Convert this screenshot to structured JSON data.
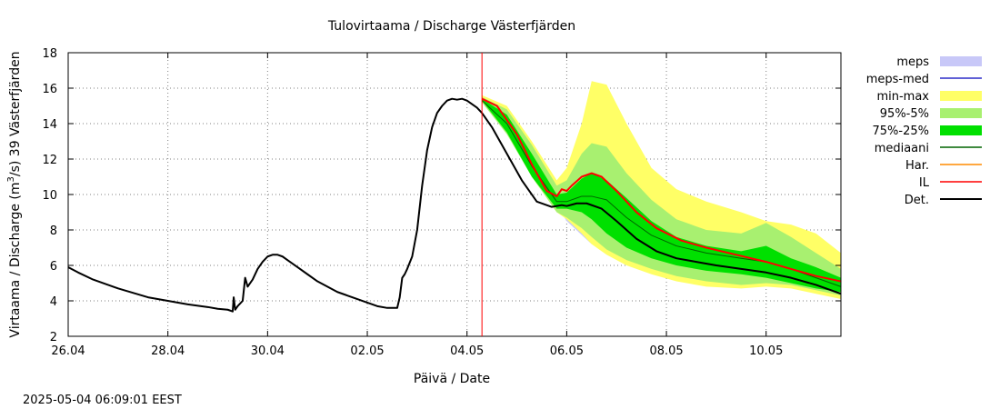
{
  "chart_data": {
    "type": "line",
    "title": "Tulovirtaama / Discharge  Västerfjärden",
    "xlabel": "Päivä / Date",
    "ylabel_parts": [
      "Virtaama / Discharge (m",
      "3",
      "/s)  39 Västerfjärden"
    ],
    "timestamp": "2025-05-04 06:09:01 EEST",
    "xlim": [
      0,
      15.5
    ],
    "ylim": [
      2,
      18
    ],
    "x_unit": "days since 26.04",
    "x_ticks": [
      {
        "x": 0,
        "label": "26.04"
      },
      {
        "x": 2,
        "label": "28.04"
      },
      {
        "x": 4,
        "label": "30.04"
      },
      {
        "x": 6,
        "label": "02.05"
      },
      {
        "x": 8,
        "label": "04.05"
      },
      {
        "x": 10,
        "label": "06.05"
      },
      {
        "x": 12,
        "label": "08.05"
      },
      {
        "x": 14,
        "label": "10.05"
      }
    ],
    "y_ticks": [
      2,
      4,
      6,
      8,
      10,
      12,
      14,
      16,
      18
    ],
    "grid": true,
    "forecast_start": 8.3,
    "legend_position": "right",
    "legend": [
      {
        "name": "meps",
        "kind": "box",
        "color": "#c8c8f8"
      },
      {
        "name": "meps-med",
        "kind": "line",
        "color": "#2b2bc8"
      },
      {
        "name": "min-max",
        "kind": "box",
        "color": "#ffff66"
      },
      {
        "name": "95%-5%",
        "kind": "box",
        "color": "#a8f070"
      },
      {
        "name": "75%-25%",
        "kind": "box",
        "color": "#00e000"
      },
      {
        "name": "mediaani",
        "kind": "line",
        "color": "#006400"
      },
      {
        "name": "Har.",
        "kind": "line",
        "color": "#ff8c00"
      },
      {
        "name": "IL",
        "kind": "line",
        "color": "#ff0000"
      },
      {
        "name": "Det.",
        "kind": "line",
        "color": "#000000"
      }
    ],
    "bands": {
      "meps": {
        "x": [
          8.3,
          9.2,
          10.0,
          10.5
        ],
        "lo": [
          15.3,
          12.0,
          8.5,
          7.2
        ],
        "hi": [
          15.3,
          12.3,
          9.2,
          8.8
        ]
      },
      "min-max": {
        "x": [
          8.3,
          8.8,
          9.3,
          9.8,
          10.0,
          10.3,
          10.5,
          10.8,
          11.2,
          11.7,
          12.2,
          12.8,
          13.5,
          14.0,
          14.5,
          15.0,
          15.5
        ],
        "lo": [
          15.2,
          13.5,
          11.0,
          9.0,
          8.6,
          7.8,
          7.2,
          6.6,
          6.0,
          5.5,
          5.1,
          4.8,
          4.7,
          4.8,
          4.7,
          4.4,
          4.1
        ],
        "hi": [
          15.6,
          15.0,
          13.0,
          10.8,
          11.5,
          14.0,
          16.4,
          16.2,
          14.0,
          11.5,
          10.3,
          9.6,
          9.0,
          8.5,
          8.3,
          7.8,
          6.7
        ]
      },
      "95%-5%": {
        "x": [
          8.3,
          8.8,
          9.3,
          9.8,
          10.0,
          10.3,
          10.5,
          10.8,
          11.2,
          11.7,
          12.2,
          12.8,
          13.5,
          14.0,
          14.5,
          15.0,
          15.5
        ],
        "lo": [
          15.2,
          13.4,
          11.0,
          9.0,
          8.7,
          8.1,
          7.6,
          6.9,
          6.3,
          5.8,
          5.4,
          5.1,
          4.9,
          5.0,
          4.9,
          4.6,
          4.3
        ],
        "hi": [
          15.5,
          14.8,
          12.8,
          10.5,
          10.8,
          12.3,
          12.9,
          12.7,
          11.2,
          9.7,
          8.6,
          8.0,
          7.8,
          8.4,
          7.6,
          6.7,
          5.8
        ]
      },
      "75%-25%": {
        "x": [
          8.3,
          8.8,
          9.3,
          9.8,
          10.0,
          10.3,
          10.5,
          10.8,
          11.2,
          11.7,
          12.2,
          12.8,
          13.5,
          14.0,
          14.5,
          15.0,
          15.5
        ],
        "lo": [
          15.3,
          13.5,
          11.0,
          9.2,
          9.2,
          9.0,
          8.6,
          7.8,
          7.0,
          6.4,
          6.0,
          5.7,
          5.5,
          5.3,
          5.0,
          4.7,
          4.5
        ],
        "hi": [
          15.4,
          14.5,
          12.3,
          10.0,
          10.1,
          10.9,
          11.2,
          10.8,
          9.8,
          8.5,
          7.6,
          7.1,
          6.8,
          7.1,
          6.4,
          5.9,
          5.3
        ]
      }
    },
    "series": [
      {
        "name": "Det.",
        "color": "#000000",
        "width": 2,
        "x": [
          0,
          0.2,
          0.5,
          0.8,
          1.0,
          1.3,
          1.6,
          2.0,
          2.4,
          2.8,
          3.0,
          3.2,
          3.3,
          3.32,
          3.35,
          3.4,
          3.5,
          3.55,
          3.6,
          3.7,
          3.8,
          3.9,
          4.0,
          4.1,
          4.2,
          4.3,
          4.4,
          4.6,
          4.8,
          5.0,
          5.2,
          5.4,
          5.6,
          5.8,
          6.0,
          6.2,
          6.4,
          6.6,
          6.65,
          6.7,
          6.75,
          6.8,
          6.9,
          7.0,
          7.1,
          7.2,
          7.3,
          7.4,
          7.5,
          7.6,
          7.7,
          7.8,
          7.9,
          8.0,
          8.1,
          8.2,
          8.3,
          8.5,
          8.8,
          9.1,
          9.4,
          9.7,
          9.9,
          10.0,
          10.2,
          10.4,
          10.7,
          11.0,
          11.4,
          11.8,
          12.2,
          12.6,
          13.0,
          13.5,
          14.0,
          14.5,
          15.0,
          15.5
        ],
        "y": [
          5.9,
          5.6,
          5.2,
          4.9,
          4.7,
          4.45,
          4.2,
          4.0,
          3.8,
          3.65,
          3.55,
          3.5,
          3.4,
          4.2,
          3.5,
          3.7,
          4.0,
          5.3,
          4.8,
          5.2,
          5.8,
          6.2,
          6.5,
          6.6,
          6.6,
          6.5,
          6.3,
          5.9,
          5.5,
          5.1,
          4.8,
          4.5,
          4.3,
          4.1,
          3.9,
          3.7,
          3.6,
          3.6,
          4.2,
          5.3,
          5.5,
          5.8,
          6.5,
          8.0,
          10.5,
          12.5,
          13.8,
          14.6,
          15.0,
          15.3,
          15.4,
          15.35,
          15.4,
          15.3,
          15.1,
          14.9,
          14.6,
          13.8,
          12.3,
          10.8,
          9.6,
          9.3,
          9.4,
          9.35,
          9.5,
          9.5,
          9.2,
          8.5,
          7.5,
          6.8,
          6.4,
          6.2,
          6.0,
          5.8,
          5.6,
          5.3,
          4.9,
          4.4
        ]
      },
      {
        "name": "mediaani",
        "color": "#006400",
        "width": 1,
        "x": [
          8.3,
          8.8,
          9.3,
          9.8,
          10.0,
          10.3,
          10.5,
          10.8,
          11.2,
          11.7,
          12.2,
          12.8,
          13.5,
          14.0,
          14.5,
          15.0,
          15.5
        ],
        "y": [
          15.3,
          14.0,
          11.6,
          9.6,
          9.6,
          9.9,
          9.9,
          9.7,
          8.7,
          7.7,
          7.1,
          6.7,
          6.4,
          6.2,
          5.8,
          5.3,
          4.8
        ]
      },
      {
        "name": "IL",
        "color": "#ff0000",
        "width": 2,
        "x": [
          8.3,
          8.6,
          9.0,
          9.3,
          9.6,
          9.8,
          9.9,
          10.0,
          10.1,
          10.3,
          10.5,
          10.7,
          11.0,
          11.4,
          11.8,
          12.3,
          12.8,
          13.4,
          14.0,
          14.5,
          15.0,
          15.5
        ],
        "y": [
          15.4,
          15.0,
          13.4,
          11.7,
          10.2,
          9.9,
          10.3,
          10.2,
          10.5,
          11.0,
          11.2,
          11.0,
          10.2,
          9.0,
          8.1,
          7.4,
          7.0,
          6.6,
          6.2,
          5.8,
          5.4,
          5.1
        ]
      }
    ]
  }
}
